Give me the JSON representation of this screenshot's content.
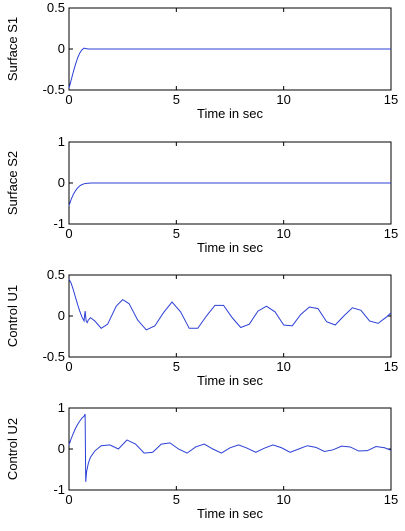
{
  "colors": {
    "series": "#2b3fd6",
    "axis": "#000000"
  },
  "chart_data": [
    {
      "type": "line",
      "xlabel": "Time in sec",
      "ylabel": "Surface S1",
      "xlim": [
        0,
        15
      ],
      "ylim": [
        -0.5,
        0.5
      ],
      "xticks": [
        "0",
        "5",
        "10",
        "15"
      ],
      "yticks": [
        "-0.5",
        "0",
        "0.5"
      ],
      "grid": false,
      "series": [
        {
          "x": [
            0,
            0.1,
            0.2,
            0.3,
            0.4,
            0.5,
            0.6,
            0.7,
            0.8,
            0.9,
            1.0,
            2,
            4,
            6,
            8,
            10,
            12,
            14,
            15
          ],
          "y": [
            -0.48,
            -0.38,
            -0.28,
            -0.19,
            -0.11,
            -0.05,
            -0.01,
            0.01,
            0.005,
            0.0,
            0.0,
            0.0,
            0.0,
            0.0,
            0.0,
            0.0,
            0.0,
            0.0,
            0.0
          ]
        }
      ]
    },
    {
      "type": "line",
      "xlabel": "Time in sec",
      "ylabel": "Surface S2",
      "xlim": [
        0,
        15
      ],
      "ylim": [
        -1,
        1
      ],
      "xticks": [
        "0",
        "5",
        "10",
        "15"
      ],
      "yticks": [
        "-1",
        "0",
        "1"
      ],
      "grid": false,
      "series": [
        {
          "x": [
            0,
            0.1,
            0.2,
            0.3,
            0.4,
            0.5,
            0.6,
            0.7,
            0.8,
            0.9,
            1.0,
            1.2,
            2,
            4,
            6,
            8,
            10,
            12,
            14,
            15
          ],
          "y": [
            -0.55,
            -0.4,
            -0.28,
            -0.19,
            -0.12,
            -0.07,
            -0.04,
            -0.02,
            -0.01,
            -0.005,
            0.0,
            0.0,
            0.0,
            0.0,
            0.0,
            0.0,
            0.0,
            0.0,
            0.0,
            0.0
          ]
        }
      ]
    },
    {
      "type": "line",
      "xlabel": "Time in sec",
      "ylabel": "Control U1",
      "xlim": [
        0,
        15
      ],
      "ylim": [
        -0.5,
        0.5
      ],
      "xticks": [
        "0",
        "5",
        "10",
        "15"
      ],
      "yticks": [
        "-0.5",
        "0",
        "0.5"
      ],
      "grid": false,
      "series": [
        {
          "x": [
            0,
            0.1,
            0.2,
            0.3,
            0.4,
            0.5,
            0.6,
            0.7,
            0.75,
            0.8,
            0.85,
            0.9,
            1.0,
            1.2,
            1.5,
            1.8,
            2.2,
            2.5,
            2.8,
            3.2,
            3.6,
            4.0,
            4.4,
            4.8,
            5.2,
            5.6,
            6.0,
            6.4,
            6.8,
            7.2,
            7.6,
            8.0,
            8.4,
            8.8,
            9.2,
            9.6,
            10.0,
            10.4,
            10.8,
            11.2,
            11.6,
            12.0,
            12.4,
            12.8,
            13.2,
            13.6,
            14.0,
            14.4,
            14.8,
            15.0
          ],
          "y": [
            0.45,
            0.4,
            0.32,
            0.23,
            0.14,
            0.06,
            -0.01,
            -0.06,
            0.06,
            -0.06,
            -0.08,
            -0.05,
            -0.02,
            -0.06,
            -0.15,
            -0.1,
            0.12,
            0.2,
            0.15,
            -0.05,
            -0.17,
            -0.12,
            0.04,
            0.17,
            0.05,
            -0.15,
            -0.15,
            0.0,
            0.13,
            0.13,
            -0.02,
            -0.14,
            -0.1,
            0.06,
            0.12,
            0.05,
            -0.11,
            -0.12,
            0.02,
            0.11,
            0.09,
            -0.07,
            -0.11,
            0.0,
            0.1,
            0.07,
            -0.06,
            -0.09,
            -0.01,
            0.04
          ]
        }
      ]
    },
    {
      "type": "line",
      "xlabel": "Time in sec",
      "ylabel": "Control U2",
      "xlim": [
        0,
        15
      ],
      "ylim": [
        -1,
        1
      ],
      "xticks": [
        "0",
        "5",
        "10",
        "15"
      ],
      "yticks": [
        "-1",
        "0",
        "1"
      ],
      "grid": false,
      "series": [
        {
          "x": [
            0,
            0.1,
            0.2,
            0.3,
            0.4,
            0.5,
            0.6,
            0.7,
            0.75,
            0.78,
            0.82,
            0.9,
            1.0,
            1.2,
            1.5,
            1.9,
            2.3,
            2.7,
            3.1,
            3.5,
            3.9,
            4.3,
            4.7,
            5.1,
            5.5,
            5.9,
            6.3,
            6.7,
            7.1,
            7.5,
            7.9,
            8.3,
            8.7,
            9.1,
            9.5,
            9.9,
            10.3,
            10.7,
            11.1,
            11.5,
            11.9,
            12.3,
            12.7,
            13.1,
            13.5,
            13.9,
            14.3,
            14.7,
            15.0
          ],
          "y": [
            0.1,
            0.25,
            0.38,
            0.5,
            0.6,
            0.68,
            0.75,
            0.8,
            0.85,
            -0.8,
            -0.55,
            -0.35,
            -0.2,
            -0.05,
            0.08,
            0.1,
            0.0,
            0.22,
            0.12,
            -0.1,
            -0.08,
            0.12,
            0.15,
            0.0,
            -0.1,
            0.05,
            0.12,
            0.0,
            -0.1,
            0.03,
            0.1,
            0.02,
            -0.08,
            0.02,
            0.1,
            0.03,
            -0.08,
            0.0,
            0.08,
            0.04,
            -0.06,
            -0.02,
            0.07,
            0.05,
            -0.05,
            -0.04,
            0.06,
            0.03,
            -0.03
          ]
        }
      ]
    }
  ]
}
